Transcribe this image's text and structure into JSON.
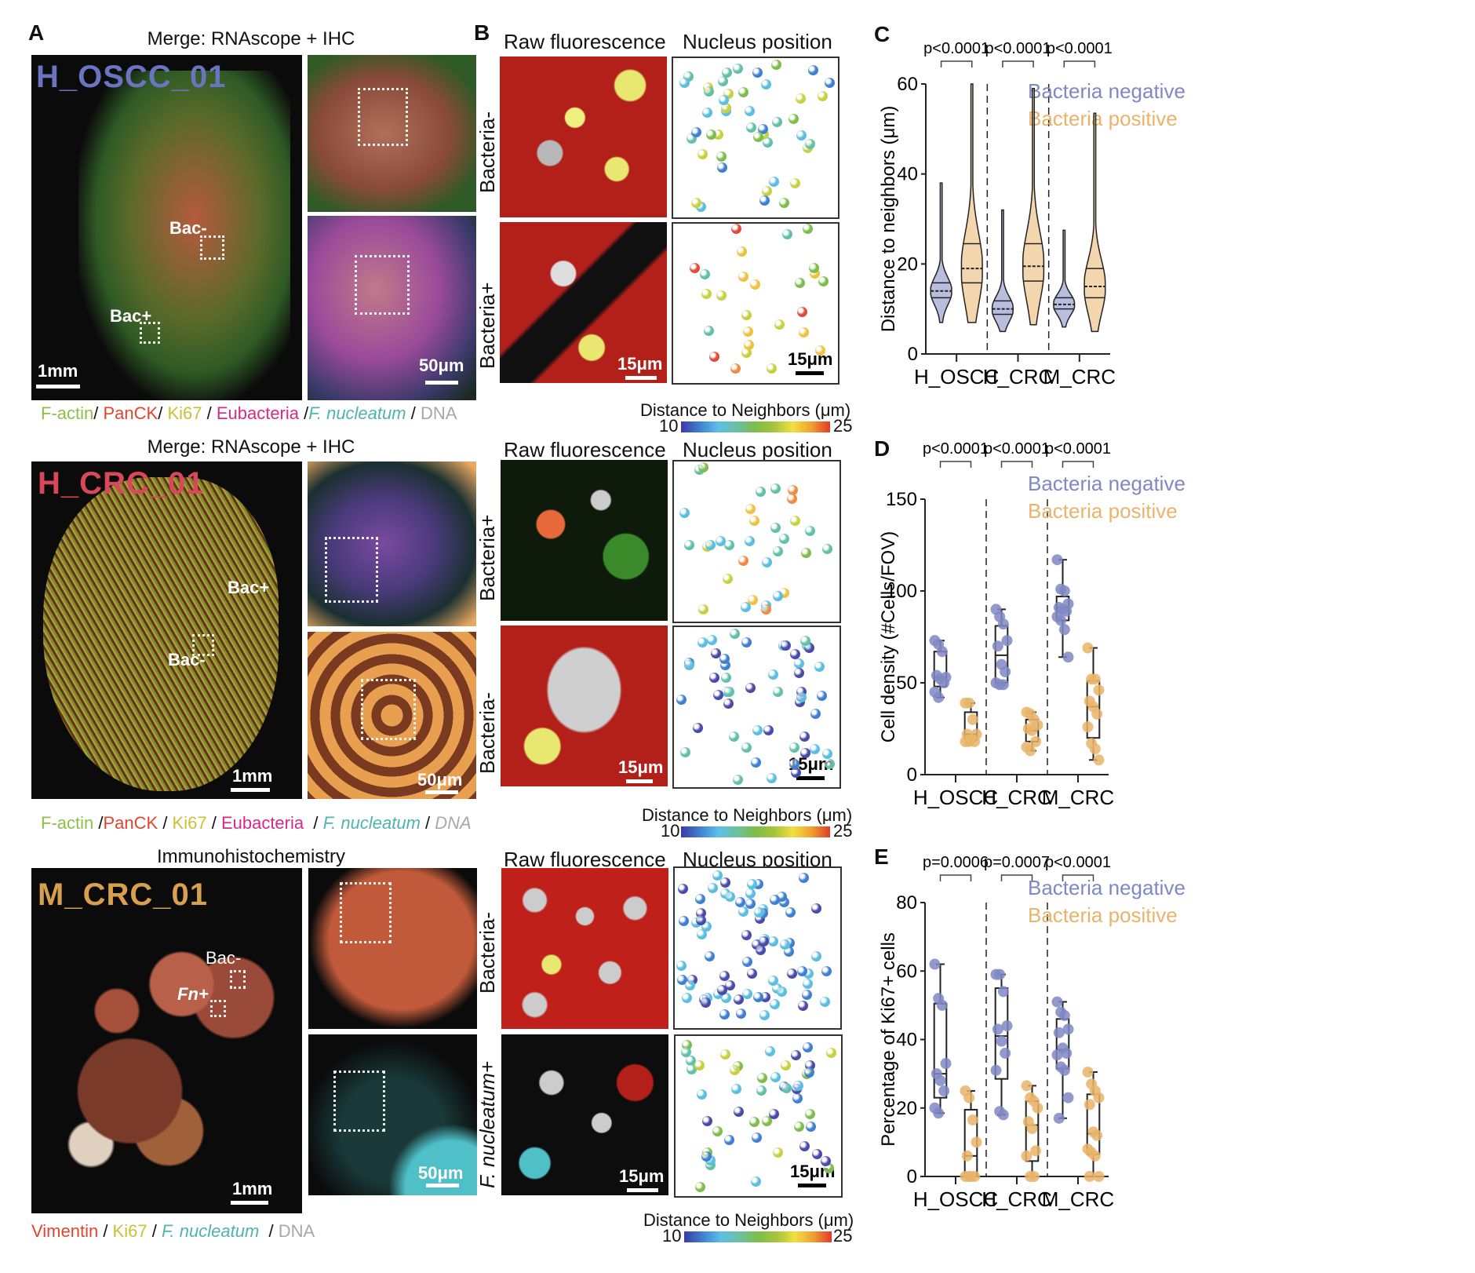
{
  "panels": {
    "A": "A",
    "B": "B",
    "C": "C",
    "D": "D",
    "E": "E"
  },
  "colors": {
    "bacteria_negative": "#7f88c4",
    "bacteria_positive": "#e9b46a",
    "h_oscc_label": "#6b74c0",
    "h_crc_label": "#d9475a",
    "m_crc_label": "#d6a04e"
  },
  "rows": [
    {
      "section_title": "Merge: RNAscope + IHC",
      "sample_name": "H_OSCC_01",
      "roi_labels": [
        "Bac-",
        "Bac+"
      ],
      "scalebar_overview": "1mm",
      "scalebar_zoom": "50μm",
      "stain_legend": [
        {
          "text": "F-actin",
          "color": "#8fbf4a",
          "italic": false
        },
        {
          "text": "/ ",
          "color": "#111",
          "italic": false
        },
        {
          "text": "PanCK",
          "color": "#e0452e",
          "italic": false
        },
        {
          "text": "/ ",
          "color": "#111",
          "italic": false
        },
        {
          "text": "Ki67",
          "color": "#c9c03a",
          "italic": false
        },
        {
          "text": " / ",
          "color": "#111",
          "italic": false
        },
        {
          "text": "Eubacteria",
          "color": "#d42a8a",
          "italic": false
        },
        {
          "text": " /",
          "color": "#111",
          "italic": false
        },
        {
          "text": "F. nucleatum",
          "color": "#4fb3b0",
          "italic": true
        },
        {
          "text": " / ",
          "color": "#111",
          "italic": false
        },
        {
          "text": "DNA",
          "color": "#a8a8a8",
          "italic": false
        }
      ],
      "b_col_heads": [
        "Raw fluorescence",
        "Nucleus position"
      ],
      "b_row_labels": [
        "Bacteria-",
        "Bacteria+"
      ],
      "b_scalebar": "15μm",
      "colorbar": {
        "title": "Distance to Neighbors (μm)",
        "min": "10",
        "max": "25"
      }
    },
    {
      "section_title": "Merge: RNAscope + IHC",
      "sample_name": "H_CRC_01",
      "roi_labels": [
        "Bac+",
        "Bac-"
      ],
      "scalebar_overview": "1mm",
      "scalebar_zoom": "50μm",
      "stain_legend": [
        {
          "text": "F-actin",
          "color": "#8fbf4a",
          "italic": false
        },
        {
          "text": " /",
          "color": "#111",
          "italic": false
        },
        {
          "text": "PanCK",
          "color": "#e0452e",
          "italic": false
        },
        {
          "text": " / ",
          "color": "#111",
          "italic": false
        },
        {
          "text": "Ki67",
          "color": "#c9c03a",
          "italic": false
        },
        {
          "text": " / ",
          "color": "#111",
          "italic": false
        },
        {
          "text": "Eubacteria",
          "color": "#d42a8a",
          "italic": false
        },
        {
          "text": "  / ",
          "color": "#111",
          "italic": false
        },
        {
          "text": "F. nucleatum",
          "color": "#4fb3b0",
          "italic": true
        },
        {
          "text": " / ",
          "color": "#111",
          "italic": false
        },
        {
          "text": "DNA",
          "color": "#a8a8a8",
          "italic": true
        }
      ],
      "b_col_heads": [
        "Raw fluorescence",
        "Nucleus position"
      ],
      "b_row_labels": [
        "Bacteria+",
        "Bacteria-"
      ],
      "b_scalebar": "15μm",
      "colorbar": {
        "title": "Distance to Neighbors (μm)",
        "min": "10",
        "max": "25"
      }
    },
    {
      "section_title": "Immunohistochemistry",
      "sample_name": "M_CRC_01",
      "roi_labels": [
        "Bac-",
        "Fn+"
      ],
      "scalebar_overview": "1mm",
      "scalebar_zoom": "50μm",
      "stain_legend": [
        {
          "text": "Vimentin",
          "color": "#e0452e",
          "italic": false
        },
        {
          "text": " / ",
          "color": "#111",
          "italic": false
        },
        {
          "text": "Ki67",
          "color": "#c9c03a",
          "italic": false
        },
        {
          "text": " / ",
          "color": "#111",
          "italic": false
        },
        {
          "text": "F. nucleatum",
          "color": "#4fb3b0",
          "italic": true
        },
        {
          "text": "  / ",
          "color": "#111",
          "italic": false
        },
        {
          "text": "DNA",
          "color": "#a8a8a8",
          "italic": false
        }
      ],
      "b_col_heads": [
        "Raw fluorescence",
        "Nucleus position"
      ],
      "b_row_labels": [
        "Bacteria-",
        "F. nucleatum+"
      ],
      "b_scalebar": "15μm",
      "colorbar": {
        "title": "Distance to Neighbors (μm)",
        "min": "10",
        "max": "25"
      }
    }
  ],
  "chart_data": [
    {
      "panel": "C",
      "type": "violin",
      "ylabel": "Distance to neighbors (μm)",
      "xlabel": "",
      "ylim": [
        0,
        60
      ],
      "yticks": [
        0,
        20,
        40,
        60
      ],
      "categories": [
        "H_OSCC",
        "H_CRC",
        "M_CRC"
      ],
      "legend": [
        "Bacteria negative",
        "Bacteria positive"
      ],
      "legend_position": "top-right",
      "pvalues": [
        "p<0.0001",
        "p<0.0001",
        "p<0.0001"
      ],
      "series": [
        {
          "name": "Bacteria negative",
          "groups": [
            {
              "min": 7,
              "q1": 12.5,
              "median": 14,
              "q3": 15.8,
              "max": 38
            },
            {
              "min": 5,
              "q1": 8.8,
              "median": 10,
              "q3": 11.8,
              "max": 32
            },
            {
              "min": 6,
              "q1": 10,
              "median": 11,
              "q3": 12.5,
              "max": 27.5
            }
          ]
        },
        {
          "name": "Bacteria positive",
          "groups": [
            {
              "min": 7,
              "q1": 15.8,
              "median": 19,
              "q3": 24.5,
              "max": 60
            },
            {
              "min": 6.5,
              "q1": 16.2,
              "median": 19.5,
              "q3": 24.5,
              "max": 59
            },
            {
              "min": 5,
              "q1": 12.5,
              "median": 15,
              "q3": 19,
              "max": 53.5
            }
          ]
        }
      ]
    },
    {
      "panel": "D",
      "type": "box",
      "ylabel": "Cell density (#Cells/FOV)",
      "xlabel": "",
      "ylim": [
        0,
        150
      ],
      "yticks": [
        0,
        50,
        100,
        150
      ],
      "categories": [
        "H_OSCC",
        "H_CRC",
        "M_CRC"
      ],
      "legend": [
        "Bacteria negative",
        "Bacteria positive"
      ],
      "legend_position": "top-right",
      "pvalues": [
        "p<0.0001",
        "p<0.0001",
        "p<0.0001"
      ],
      "series": [
        {
          "name": "Bacteria negative",
          "groups": [
            {
              "min": 42,
              "q1": 48,
              "median": 53,
              "q3": 67,
              "max": 73,
              "points": [
                73,
                71,
                67,
                53,
                54,
                52,
                50,
                45,
                42
              ]
            },
            {
              "min": 49,
              "q1": 50,
              "median": 65,
              "q3": 81,
              "max": 90,
              "points": [
                90,
                86,
                82,
                73,
                70,
                60,
                56,
                50,
                49,
                49
              ]
            },
            {
              "min": 64,
              "q1": 84,
              "median": 91,
              "q3": 97,
              "max": 117,
              "points": [
                117,
                101,
                100,
                93,
                91,
                90,
                89,
                86,
                84,
                79,
                64
              ]
            }
          ]
        },
        {
          "name": "Bacteria positive",
          "groups": [
            {
              "min": 18,
              "q1": 19,
              "median": 22,
              "q3": 34,
              "max": 39,
              "points": [
                39,
                39,
                30,
                22,
                22,
                19,
                18,
                18,
                18
              ]
            },
            {
              "min": 13,
              "q1": 18,
              "median": 24,
              "q3": 30,
              "max": 34,
              "points": [
                34,
                33,
                30,
                27,
                25,
                24,
                18,
                15,
                13
              ]
            },
            {
              "min": 8,
              "q1": 20,
              "median": 37,
              "q3": 51,
              "max": 69,
              "points": [
                69,
                52,
                52,
                46,
                40,
                37,
                33,
                26,
                17,
                14,
                8
              ]
            }
          ]
        }
      ]
    },
    {
      "panel": "E",
      "type": "box",
      "ylabel": "Percentage of Ki67+ cells",
      "xlabel": "",
      "ylim": [
        0,
        80
      ],
      "yticks": [
        0,
        20,
        40,
        60,
        80
      ],
      "categories": [
        "H_OSCC",
        "H_CRC",
        "M_CRC"
      ],
      "legend": [
        "Bacteria negative",
        "Bacteria positive"
      ],
      "legend_position": "top-right",
      "pvalues": [
        "p=0.0006",
        "p=0.0007",
        "p<0.0001"
      ],
      "series": [
        {
          "name": "Bacteria negative",
          "groups": [
            {
              "min": 18.5,
              "q1": 23,
              "median": 30,
              "q3": 50.5,
              "max": 62,
              "points": [
                62,
                52,
                50,
                33,
                30,
                28,
                25,
                20,
                18.5
              ]
            },
            {
              "min": 18,
              "q1": 28.5,
              "median": 41,
              "q3": 55,
              "max": 59,
              "points": [
                59,
                59,
                54,
                44,
                43,
                39.5,
                36,
                31,
                19,
                18
              ]
            },
            {
              "min": 17,
              "q1": 31.5,
              "median": 37,
              "q3": 46,
              "max": 51,
              "points": [
                51,
                48,
                47,
                43,
                42,
                37.5,
                36,
                35.5,
                32,
                31,
                23,
                17
              ]
            }
          ]
        },
        {
          "name": "Bacteria positive",
          "groups": [
            {
              "min": 0,
              "q1": 0,
              "median": 6,
              "q3": 19.5,
              "max": 25,
              "points": [
                25,
                23,
                16.5,
                10,
                6,
                0,
                0,
                0,
                0
              ]
            },
            {
              "min": 0,
              "q1": 4.5,
              "median": 15,
              "q3": 22,
              "max": 26.5,
              "points": [
                26.5,
                23,
                22,
                20,
                16,
                14,
                7.5,
                6,
                0,
                0
              ]
            },
            {
              "min": 0,
              "q1": 6.5,
              "median": 12.5,
              "q3": 24,
              "max": 30.5,
              "points": [
                30.5,
                27,
                25,
                23,
                21,
                13,
                12,
                8,
                7,
                6,
                0,
                0
              ]
            }
          ]
        }
      ]
    }
  ]
}
